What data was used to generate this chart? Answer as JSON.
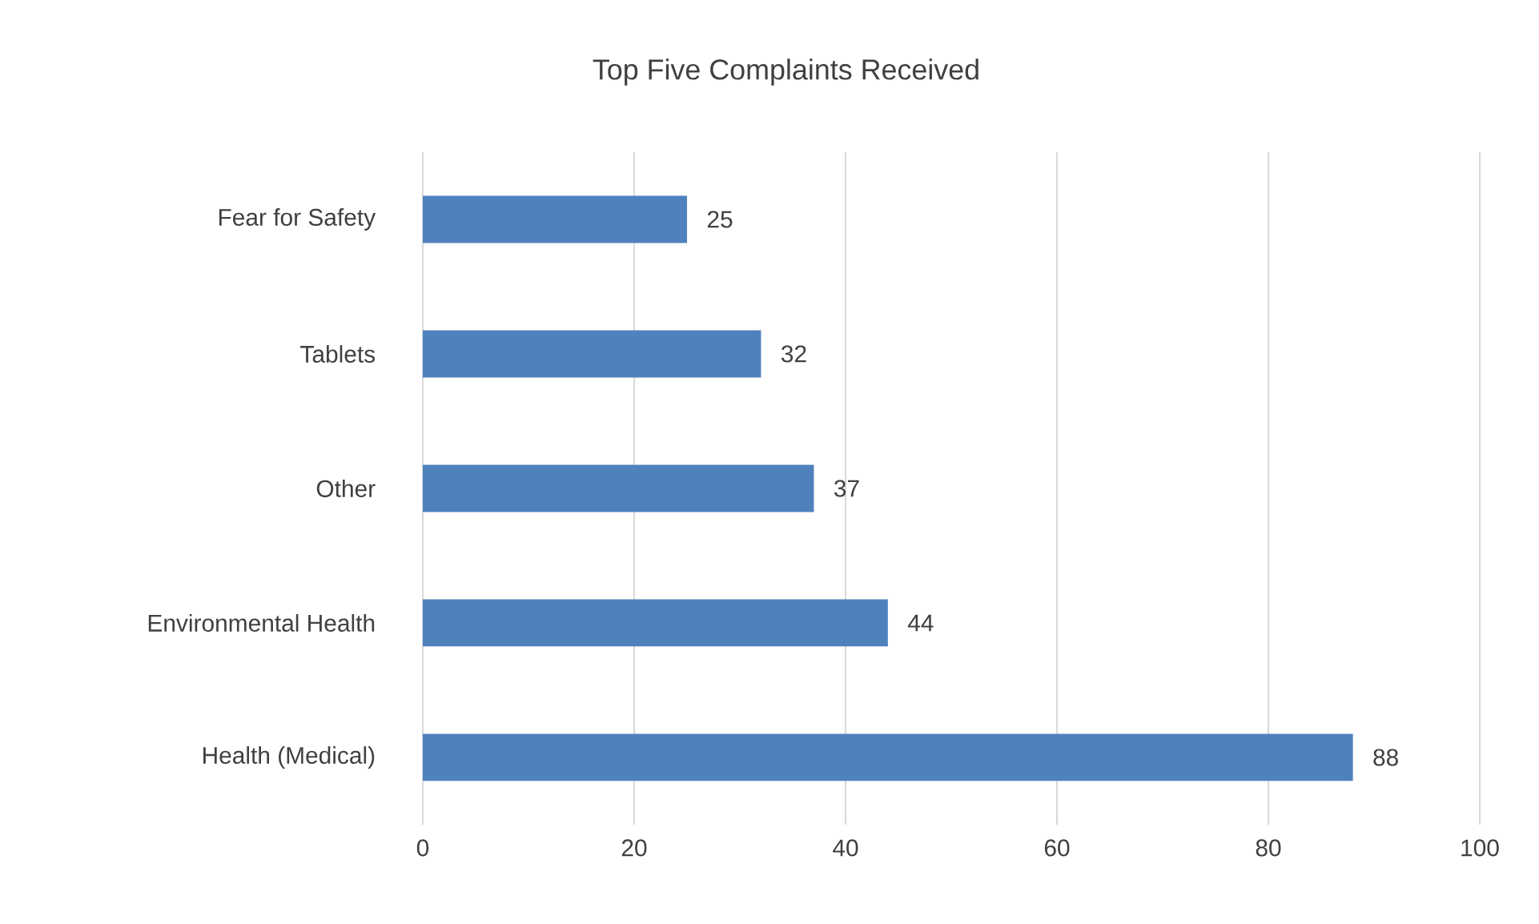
{
  "chart_data": {
    "type": "bar",
    "orientation": "horizontal",
    "title": "Top Five Complaints Received",
    "categories": [
      "Fear for Safety",
      "Tablets",
      "Other",
      "Environmental Health",
      "Health (Medical)"
    ],
    "values": [
      25,
      32,
      37,
      44,
      88
    ],
    "color": "#4f81bd",
    "xlim": [
      0,
      100
    ],
    "xticks": [
      0,
      20,
      40,
      60,
      80,
      100
    ],
    "grid": "x",
    "data_labels": true
  }
}
